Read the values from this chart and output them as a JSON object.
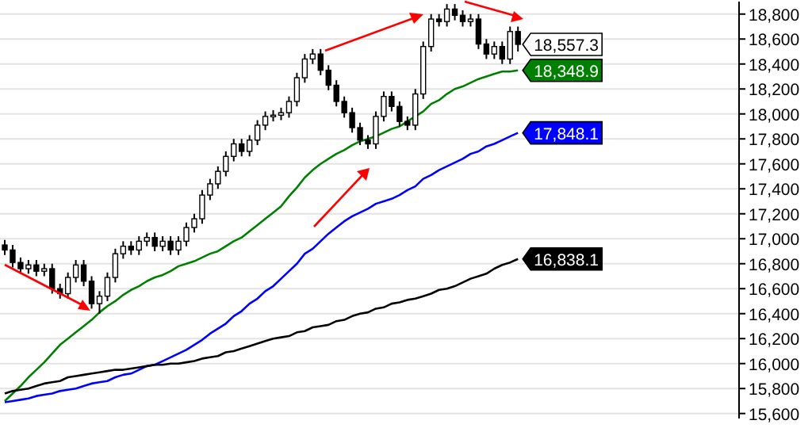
{
  "chart_data": {
    "type": "candlestick",
    "categories": [
      null,
      null,
      null,
      null,
      null,
      null,
      null,
      null,
      null,
      null,
      null,
      null,
      null,
      null,
      null,
      null,
      null,
      null,
      null,
      null,
      null,
      null,
      null,
      null,
      null,
      null,
      null,
      null,
      null,
      null,
      null,
      null,
      null,
      null,
      null,
      null,
      null,
      null,
      null,
      null,
      null,
      null,
      null,
      null,
      null,
      null,
      null,
      null,
      null,
      null,
      null,
      null,
      null,
      null,
      null,
      null,
      null,
      null,
      null,
      null,
      null,
      null,
      null,
      null,
      null,
      null
    ],
    "ohlc": [
      [
        16950,
        16990,
        16870,
        16910
      ],
      [
        16910,
        16950,
        16770,
        16810
      ],
      [
        16810,
        16850,
        16720,
        16760
      ],
      [
        16760,
        16830,
        16720,
        16790
      ],
      [
        16790,
        16830,
        16700,
        16740
      ],
      [
        16740,
        16800,
        16700,
        16760
      ],
      [
        16760,
        16800,
        16560,
        16600
      ],
      [
        16600,
        16640,
        16520,
        16560
      ],
      [
        16560,
        16730,
        16520,
        16690
      ],
      [
        16690,
        16830,
        16650,
        16790
      ],
      [
        16790,
        16830,
        16620,
        16660
      ],
      [
        16660,
        16700,
        16440,
        16480
      ],
      [
        16480,
        16580,
        16400,
        16540
      ],
      [
        16540,
        16730,
        16500,
        16690
      ],
      [
        16690,
        16920,
        16650,
        16880
      ],
      [
        16880,
        16980,
        16840,
        16940
      ],
      [
        16940,
        16980,
        16870,
        16910
      ],
      [
        16910,
        17020,
        16870,
        16980
      ],
      [
        16980,
        17050,
        16940,
        17010
      ],
      [
        17010,
        17050,
        16900,
        16940
      ],
      [
        16940,
        17020,
        16900,
        16980
      ],
      [
        16980,
        17020,
        16870,
        16910
      ],
      [
        16910,
        17020,
        16870,
        16980
      ],
      [
        16980,
        17130,
        16940,
        17090
      ],
      [
        17090,
        17200,
        17050,
        17160
      ],
      [
        17160,
        17390,
        17120,
        17350
      ],
      [
        17350,
        17480,
        17310,
        17440
      ],
      [
        17440,
        17580,
        17400,
        17540
      ],
      [
        17540,
        17700,
        17500,
        17660
      ],
      [
        17660,
        17800,
        17620,
        17760
      ],
      [
        17760,
        17800,
        17660,
        17700
      ],
      [
        17700,
        17830,
        17660,
        17790
      ],
      [
        17790,
        17950,
        17750,
        17910
      ],
      [
        17910,
        18020,
        17870,
        17980
      ],
      [
        17980,
        18030,
        17940,
        17990
      ],
      [
        17990,
        18050,
        17950,
        18010
      ],
      [
        18010,
        18140,
        17970,
        18100
      ],
      [
        18100,
        18330,
        18060,
        18290
      ],
      [
        18290,
        18480,
        18250,
        18440
      ],
      [
        18440,
        18520,
        18400,
        18480
      ],
      [
        18480,
        18520,
        18310,
        18350
      ],
      [
        18350,
        18390,
        18190,
        18230
      ],
      [
        18230,
        18270,
        18060,
        18100
      ],
      [
        18100,
        18140,
        17970,
        18010
      ],
      [
        18010,
        18050,
        17850,
        17890
      ],
      [
        17890,
        17930,
        17750,
        17790
      ],
      [
        17790,
        17830,
        17720,
        17760
      ],
      [
        17760,
        18020,
        17720,
        17980
      ],
      [
        17980,
        18180,
        17940,
        18140
      ],
      [
        18140,
        18180,
        18020,
        18060
      ],
      [
        18060,
        18100,
        17900,
        17940
      ],
      [
        17940,
        17980,
        17870,
        17910
      ],
      [
        17910,
        18200,
        17870,
        18160
      ],
      [
        18160,
        18580,
        18120,
        18540
      ],
      [
        18540,
        18800,
        18500,
        18760
      ],
      [
        18760,
        18800,
        18700,
        18740
      ],
      [
        18740,
        18880,
        18700,
        18840
      ],
      [
        18840,
        18880,
        18750,
        18790
      ],
      [
        18790,
        18830,
        18700,
        18740
      ],
      [
        18740,
        18800,
        18700,
        18760
      ],
      [
        18760,
        18800,
        18520,
        18560
      ],
      [
        18560,
        18600,
        18440,
        18480
      ],
      [
        18480,
        18580,
        18440,
        18540
      ],
      [
        18540,
        18580,
        18400,
        18440
      ],
      [
        18440,
        18700,
        18400,
        18660
      ],
      [
        18660,
        18700,
        18500,
        18557.3
      ]
    ],
    "series": [
      {
        "type": "line",
        "color": "#008000",
        "values": [
          15700,
          15760,
          15820,
          15890,
          15950,
          16010,
          16080,
          16150,
          16200,
          16250,
          16300,
          16350,
          16410,
          16460,
          16500,
          16550,
          16590,
          16620,
          16660,
          16690,
          16710,
          16740,
          16780,
          16800,
          16820,
          16850,
          16880,
          16900,
          16940,
          16980,
          17010,
          17060,
          17110,
          17160,
          17210,
          17260,
          17340,
          17410,
          17490,
          17550,
          17600,
          17640,
          17680,
          17710,
          17750,
          17780,
          17800,
          17820,
          17850,
          17880,
          17900,
          17940,
          17980,
          18020,
          18080,
          18110,
          18160,
          18200,
          18220,
          18250,
          18280,
          18300,
          18320,
          18340,
          18340,
          18348.9
        ],
        "value_labels": [
          null,
          null,
          null,
          null,
          null,
          null,
          null,
          null,
          null,
          null,
          null,
          null,
          null,
          null,
          null,
          null,
          null,
          null,
          null,
          null,
          null,
          null,
          null,
          null,
          null,
          null,
          null,
          null,
          null,
          null,
          null,
          null,
          null,
          null,
          null,
          null,
          null,
          null,
          null,
          null,
          null,
          null,
          null,
          null,
          null,
          null,
          null,
          null,
          null,
          null,
          null,
          null,
          null,
          null,
          null,
          null,
          null,
          null,
          null,
          null,
          null,
          null,
          null,
          null,
          null,
          "18,348.9"
        ]
      },
      {
        "type": "line",
        "color": "#0000ff",
        "values": [
          15690,
          15700,
          15710,
          15720,
          15740,
          15750,
          15760,
          15780,
          15790,
          15800,
          15820,
          15840,
          15850,
          15860,
          15890,
          15910,
          15920,
          15950,
          15980,
          15990,
          16020,
          16050,
          16080,
          16110,
          16150,
          16190,
          16240,
          16280,
          16320,
          16380,
          16420,
          16480,
          16520,
          16580,
          16620,
          16680,
          16740,
          16800,
          16880,
          16920,
          16980,
          17040,
          17090,
          17140,
          17180,
          17210,
          17240,
          17280,
          17300,
          17320,
          17350,
          17390,
          17420,
          17480,
          17510,
          17550,
          17580,
          17610,
          17640,
          17680,
          17700,
          17740,
          17760,
          17790,
          17820,
          17848.1
        ],
        "value_labels": [
          null,
          null,
          null,
          null,
          null,
          null,
          null,
          null,
          null,
          null,
          null,
          null,
          null,
          null,
          null,
          null,
          null,
          null,
          null,
          null,
          null,
          null,
          null,
          null,
          null,
          null,
          null,
          null,
          null,
          null,
          null,
          null,
          null,
          null,
          null,
          null,
          null,
          null,
          null,
          null,
          null,
          null,
          null,
          null,
          null,
          null,
          null,
          null,
          null,
          null,
          null,
          null,
          null,
          null,
          null,
          null,
          null,
          null,
          null,
          null,
          null,
          null,
          null,
          null,
          null,
          "17,848.1"
        ]
      },
      {
        "type": "line",
        "color": "#000000",
        "values": [
          15760,
          15780,
          15790,
          15800,
          15820,
          15840,
          15850,
          15860,
          15890,
          15900,
          15910,
          15920,
          15930,
          15940,
          15950,
          15950,
          15960,
          15970,
          15980,
          15990,
          15990,
          16000,
          16000,
          16010,
          16020,
          16040,
          16050,
          16060,
          16090,
          16100,
          16120,
          16140,
          16160,
          16180,
          16200,
          16210,
          16220,
          16250,
          16260,
          16290,
          16300,
          16310,
          16340,
          16350,
          16380,
          16400,
          16410,
          16440,
          16450,
          16480,
          16490,
          16510,
          16520,
          16540,
          16560,
          16590,
          16600,
          16620,
          16650,
          16680,
          16700,
          16720,
          16760,
          16790,
          16810,
          16838.1
        ],
        "value_labels": [
          null,
          null,
          null,
          null,
          null,
          null,
          null,
          null,
          null,
          null,
          null,
          null,
          null,
          null,
          null,
          null,
          null,
          null,
          null,
          null,
          null,
          null,
          null,
          null,
          null,
          null,
          null,
          null,
          null,
          null,
          null,
          null,
          null,
          null,
          null,
          null,
          null,
          null,
          null,
          null,
          null,
          null,
          null,
          null,
          null,
          null,
          null,
          null,
          null,
          null,
          null,
          null,
          null,
          null,
          null,
          null,
          null,
          null,
          null,
          null,
          null,
          null,
          null,
          null,
          null,
          "16,838.1"
        ]
      }
    ],
    "annotations": [
      "18,557.3"
    ],
    "ylim": [
      15560,
      18900
    ],
    "yticks": [
      {
        "value": 15600,
        "label": "15,600"
      },
      {
        "value": 15800,
        "label": "15,800"
      },
      {
        "value": 16000,
        "label": "16,000"
      },
      {
        "value": 16200,
        "label": "16,200"
      },
      {
        "value": 16400,
        "label": "16,400"
      },
      {
        "value": 16600,
        "label": "16,600"
      },
      {
        "value": 16800,
        "label": "16,800"
      },
      {
        "value": 17000,
        "label": "17,000"
      },
      {
        "value": 17200,
        "label": "17,200"
      },
      {
        "value": 17400,
        "label": "17,400"
      },
      {
        "value": 17600,
        "label": "17,600"
      },
      {
        "value": 17800,
        "label": "17,800"
      },
      {
        "value": 18000,
        "label": "18,000"
      },
      {
        "value": 18200,
        "label": "18,200"
      },
      {
        "value": 18400,
        "label": "18,400"
      },
      {
        "value": 18600,
        "label": "18,600"
      },
      {
        "value": 18800,
        "label": "18,800"
      }
    ],
    "grid": "y"
  }
}
